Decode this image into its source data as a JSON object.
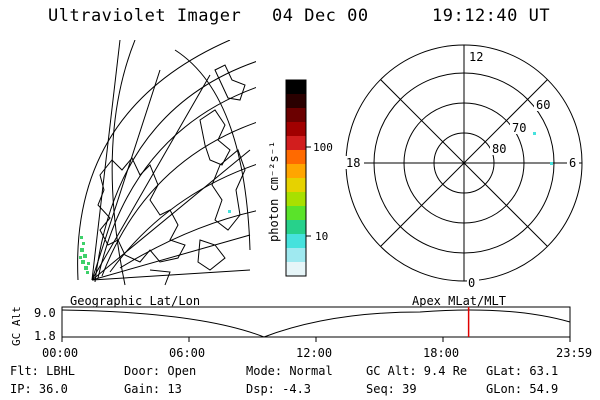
{
  "header": {
    "instrument": "Ultraviolet Imager",
    "date": "04 Dec 00",
    "time": "19:12:40 UT"
  },
  "colorbar": {
    "unit_label": "photon cm⁻²s⁻¹",
    "ticks": [
      "100",
      "10"
    ],
    "colors": [
      "#000000",
      "#2a0000",
      "#6b0000",
      "#a10000",
      "#d21e1e",
      "#ff6a00",
      "#ffa500",
      "#e6d200",
      "#a8e000",
      "#5ae32a",
      "#27d18b",
      "#46e2dd",
      "#9fe9f0",
      "#e6f5f8"
    ]
  },
  "polar_plot": {
    "mlt_labels": {
      "top": "12",
      "left": "18",
      "right": "6",
      "bottom": "0"
    },
    "lat_labels": [
      "60",
      "70",
      "80"
    ]
  },
  "map": {
    "caption": "Geographic Lat/Lon"
  },
  "apex_caption": "Apex MLat/MLT",
  "altitude_panel": {
    "y_label": "GC Alt",
    "y_ticks": [
      "9.0",
      "1.8"
    ],
    "x_ticks": [
      "00:00",
      "06:00",
      "12:00",
      "18:00",
      "23:59"
    ],
    "current_time_marker_hour": 19.21,
    "marker_color": "#e00000"
  },
  "footer": {
    "row1": [
      {
        "label": "Flt:",
        "value": "LBHL"
      },
      {
        "label": "Door:",
        "value": "Open"
      },
      {
        "label": "Mode:",
        "value": "Normal"
      },
      {
        "label": "GC Alt:",
        "value": "9.4 Re"
      },
      {
        "label": "GLat:",
        "value": "63.1"
      }
    ],
    "row2": [
      {
        "label": "IP:",
        "value": "36.0"
      },
      {
        "label": "Gain:",
        "value": "13"
      },
      {
        "label": "Dsp:",
        "value": "-4.3"
      },
      {
        "label": "Seq:",
        "value": "39"
      },
      {
        "label": "GLon:",
        "value": "54.9"
      }
    ]
  }
}
